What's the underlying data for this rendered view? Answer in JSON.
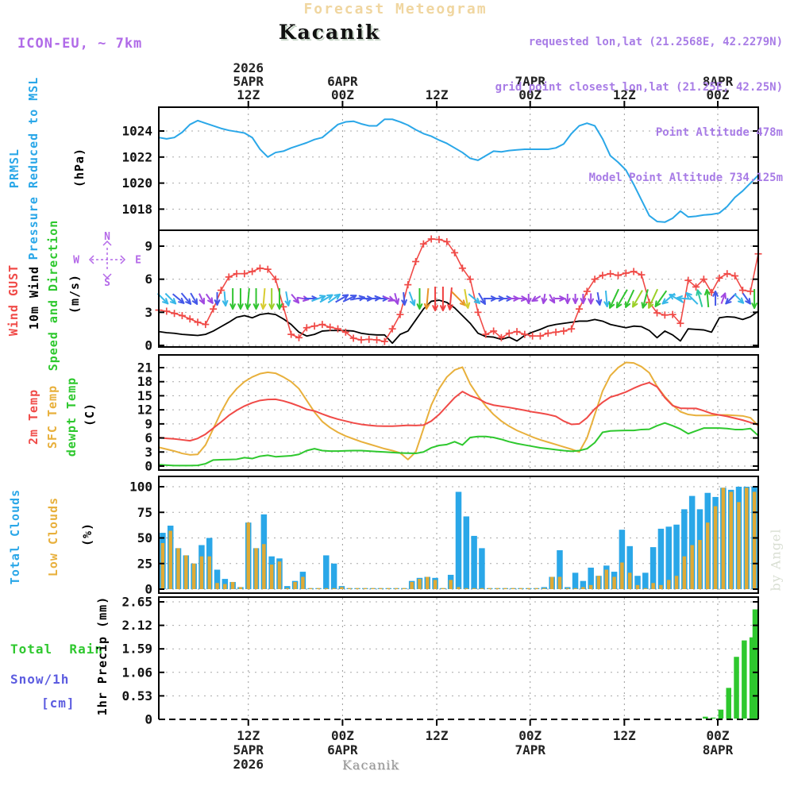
{
  "colors": {
    "title": "#f0d6a0",
    "purple": "#a87ce6",
    "model_purple": "#b06ae8",
    "compass": "#b469e8",
    "blue": "#2aa7e8",
    "red": "#f04a47",
    "green": "#2ec82e",
    "orange": "#e8b03c",
    "black": "#000000",
    "snow_blue": "#5c5ce0",
    "watermark": "#d8ded2"
  },
  "header": {
    "app_title": "Forecast Meteogram",
    "station": "Kacanik",
    "model": "ICON-EU, ~ 7km",
    "requested": "requested lon,lat (21.2568E, 42.2279N)",
    "grid_point": "grid point closest lon,lat (21.25E, 42.25N)",
    "point_altitude": "Point Altitude 478m",
    "model_altitude": "Model Point Altitude 734.125m"
  },
  "footer": {
    "station": "Kacanik",
    "watermark": "by Angel"
  },
  "chart_data": {
    "type": "meteogram-multi-panel",
    "x_hours": 77,
    "grid": {
      "vertical": "dashed",
      "horizontal": "dotted"
    },
    "time_ticks": [
      {
        "h": 11.5,
        "z": "12Z",
        "date": "5APR",
        "year": "2026"
      },
      {
        "h": 23.6,
        "z": "00Z",
        "date": "6APR"
      },
      {
        "h": 35.7,
        "z": "12Z"
      },
      {
        "h": 47.7,
        "z": "00Z",
        "date": "7APR"
      },
      {
        "h": 59.8,
        "z": "12Z"
      },
      {
        "h": 71.8,
        "z": "00Z",
        "date": "8APR"
      }
    ],
    "arrow_colors": {
      "c": "#38b8e8",
      "b": "#4458e8",
      "p": "#a048e0",
      "g": "#30c430",
      "lg": "#9cd028",
      "y": "#d8cc30",
      "o": "#e89428",
      "r": "#f04040",
      "t": "#2cc89c"
    },
    "panels": {
      "pressure": {
        "labels": [
          "PRMSL",
          "Pressure Reduced to MSL"
        ],
        "unit": "(hPa)",
        "yticks": [
          1018,
          1020,
          1022,
          1024
        ],
        "ylim": [
          1016.4,
          1025.9
        ],
        "series_color": "#2aa7e8",
        "prmsl": [
          1023.5,
          1023.4,
          1023.5,
          1023.9,
          1024.5,
          1024.8,
          1024.6,
          1024.4,
          1024.2,
          1024.05,
          1023.95,
          1023.85,
          1023.5,
          1022.6,
          1022.0,
          1022.35,
          1022.45,
          1022.7,
          1022.9,
          1023.1,
          1023.35,
          1023.5,
          1024.0,
          1024.5,
          1024.7,
          1024.75,
          1024.55,
          1024.4,
          1024.4,
          1024.9,
          1024.9,
          1024.7,
          1024.45,
          1024.1,
          1023.8,
          1023.6,
          1023.3,
          1023.05,
          1022.7,
          1022.35,
          1021.9,
          1021.75,
          1022.1,
          1022.45,
          1022.4,
          1022.5,
          1022.55,
          1022.6,
          1022.6,
          1022.6,
          1022.6,
          1022.7,
          1023.0,
          1023.8,
          1024.4,
          1024.6,
          1024.4,
          1023.4,
          1022.1,
          1021.6,
          1021.0,
          1019.9,
          1018.7,
          1017.5,
          1017.05,
          1017.0,
          1017.3,
          1017.85,
          1017.4,
          1017.45,
          1017.55,
          1017.6,
          1017.7,
          1018.2,
          1018.9,
          1019.4,
          1020.0,
          1020.6
        ]
      },
      "wind": {
        "labels": [
          "Wind GUST",
          "10m Wind",
          "Speed and Direction"
        ],
        "unit": "(m/s)",
        "compass": [
          "N",
          "E",
          "S",
          "W"
        ],
        "yticks": [
          0,
          3,
          6,
          9
        ],
        "ylim": [
          -0.15,
          10.45
        ],
        "gust_color": "#f04a47",
        "wind_color": "#000000",
        "gust": [
          3.2,
          3.1,
          2.9,
          2.7,
          2.4,
          2.1,
          1.9,
          3.3,
          5.0,
          6.2,
          6.5,
          6.5,
          6.7,
          7.0,
          6.9,
          6.0,
          3.5,
          1.0,
          0.7,
          1.6,
          1.75,
          1.9,
          1.65,
          1.5,
          1.2,
          0.65,
          0.5,
          0.55,
          0.5,
          0.35,
          1.5,
          2.8,
          5.5,
          7.6,
          9.2,
          9.65,
          9.6,
          9.4,
          8.4,
          7.0,
          6.0,
          3.0,
          1.0,
          1.3,
          0.7,
          1.1,
          1.25,
          1.0,
          0.85,
          0.85,
          1.1,
          1.2,
          1.3,
          1.5,
          3.3,
          4.9,
          6.0,
          6.35,
          6.5,
          6.35,
          6.55,
          6.7,
          6.4,
          3.9,
          2.95,
          2.75,
          2.8,
          2.0,
          5.9,
          5.3,
          6.0,
          4.8,
          6.1,
          6.5,
          6.3,
          5.0,
          4.9,
          8.3
        ],
        "wind10m": [
          1.25,
          1.15,
          1.1,
          1.0,
          0.95,
          0.9,
          1.0,
          1.3,
          1.7,
          2.1,
          2.55,
          2.7,
          2.5,
          2.8,
          2.9,
          2.8,
          2.4,
          1.9,
          1.2,
          0.85,
          1.0,
          1.3,
          1.35,
          1.35,
          1.35,
          1.3,
          1.1,
          1.0,
          0.95,
          0.95,
          0.2,
          1.0,
          1.3,
          2.3,
          3.3,
          4.0,
          4.1,
          3.9,
          3.4,
          2.7,
          2.0,
          1.1,
          0.8,
          0.75,
          0.55,
          0.75,
          0.4,
          0.9,
          1.2,
          1.45,
          1.75,
          1.9,
          2.0,
          2.1,
          2.2,
          2.2,
          2.35,
          2.2,
          1.9,
          1.75,
          1.6,
          1.75,
          1.7,
          1.35,
          0.7,
          1.3,
          0.95,
          0.4,
          1.5,
          1.45,
          1.4,
          1.2,
          2.5,
          2.6,
          2.55,
          2.35,
          2.6,
          3.1
        ],
        "arrows": [
          [
            45,
            "c",
            18
          ],
          [
            45,
            "c",
            18
          ],
          [
            40,
            "b",
            18
          ],
          [
            50,
            "b",
            18
          ],
          [
            60,
            "b",
            16
          ],
          [
            65,
            "p",
            14
          ],
          [
            55,
            "p",
            14
          ],
          [
            90,
            "b",
            16
          ],
          [
            85,
            "c",
            18
          ],
          [
            90,
            "g",
            26
          ],
          [
            90,
            "g",
            26
          ],
          [
            95,
            "g",
            26
          ],
          [
            90,
            "g",
            26
          ],
          [
            95,
            "y",
            26
          ],
          [
            90,
            "lg",
            26
          ],
          [
            90,
            "g",
            26
          ],
          [
            80,
            "c",
            18
          ],
          [
            50,
            "p",
            14
          ],
          [
            10,
            "p",
            14
          ],
          [
            0,
            "b",
            16
          ],
          [
            -20,
            "c",
            18
          ],
          [
            -30,
            "c",
            18
          ],
          [
            -35,
            "c",
            18
          ],
          [
            -30,
            "b",
            18
          ],
          [
            -25,
            "b",
            18
          ],
          [
            -10,
            "b",
            18
          ],
          [
            0,
            "b",
            18
          ],
          [
            -5,
            "b",
            18
          ],
          [
            0,
            "b",
            18
          ],
          [
            20,
            "p",
            14
          ],
          [
            75,
            "p",
            14
          ],
          [
            85,
            "b",
            16
          ],
          [
            70,
            "c",
            18
          ],
          [
            90,
            "g",
            26
          ],
          [
            95,
            "o",
            26
          ],
          [
            90,
            "r",
            30
          ],
          [
            90,
            "r",
            30
          ],
          [
            95,
            "r",
            28
          ],
          [
            45,
            "o",
            24
          ],
          [
            80,
            "y",
            24
          ],
          [
            40,
            "c",
            18
          ],
          [
            60,
            "b",
            16
          ],
          [
            0,
            "b",
            16
          ],
          [
            0,
            "b",
            16
          ],
          [
            0,
            "b",
            16
          ],
          [
            0,
            "p",
            14
          ],
          [
            5,
            "p",
            14
          ],
          [
            90,
            "p",
            12
          ],
          [
            150,
            "p",
            12
          ],
          [
            100,
            "p",
            12
          ],
          [
            60,
            "p",
            12
          ],
          [
            0,
            "p",
            12
          ],
          [
            90,
            "p",
            12
          ],
          [
            90,
            "p",
            12
          ],
          [
            90,
            "p",
            12
          ],
          [
            90,
            "p",
            13
          ],
          [
            80,
            "b",
            16
          ],
          [
            85,
            "c",
            20
          ],
          [
            115,
            "g",
            26
          ],
          [
            120,
            "g",
            26
          ],
          [
            115,
            "g",
            24
          ],
          [
            120,
            "lg",
            24
          ],
          [
            105,
            "g",
            24
          ],
          [
            115,
            "lg",
            26
          ],
          [
            125,
            "g",
            24
          ],
          [
            140,
            "c",
            20
          ],
          [
            210,
            "c",
            20
          ],
          [
            185,
            "c",
            18
          ],
          [
            225,
            "c",
            20
          ],
          [
            255,
            "t",
            22
          ],
          [
            265,
            "g",
            22
          ],
          [
            270,
            "b",
            18
          ],
          [
            290,
            "p",
            14
          ],
          [
            135,
            "b",
            18
          ],
          [
            45,
            "c",
            16
          ],
          [
            55,
            "b",
            16
          ],
          [
            90,
            "g",
            24
          ],
          [
            100,
            "y",
            22
          ]
        ]
      },
      "temp": {
        "labels": [
          "2m Temp",
          "SFC Temp",
          "dewpt Temp"
        ],
        "unit": "(C)",
        "yticks": [
          0,
          3,
          6,
          9,
          12,
          15,
          18,
          21
        ],
        "ylim": [
          -0.85,
          23.7
        ],
        "t2m_color": "#f04a47",
        "sfc_color": "#e8b03c",
        "dewpt_color": "#2ec82e",
        "t2m": [
          6.1,
          5.9,
          5.8,
          5.6,
          5.4,
          5.9,
          6.8,
          8.1,
          9.4,
          10.8,
          11.9,
          12.8,
          13.5,
          14.0,
          14.2,
          14.25,
          13.9,
          13.4,
          12.8,
          12.1,
          11.75,
          11.1,
          10.5,
          10.0,
          9.6,
          9.2,
          8.9,
          8.7,
          8.55,
          8.5,
          8.5,
          8.6,
          8.7,
          8.65,
          8.75,
          9.6,
          11.0,
          12.8,
          14.6,
          15.9,
          15.0,
          14.4,
          13.5,
          13.0,
          12.75,
          12.5,
          12.2,
          11.9,
          11.55,
          11.3,
          11.0,
          10.6,
          9.6,
          8.9,
          9.0,
          10.3,
          12.2,
          13.6,
          14.7,
          15.2,
          15.8,
          16.6,
          17.3,
          17.8,
          16.9,
          14.6,
          12.9,
          12.35,
          12.3,
          12.3,
          11.8,
          11.2,
          10.9,
          10.6,
          10.2,
          9.8,
          9.3,
          8.8
        ],
        "sfc": [
          4.0,
          3.6,
          3.2,
          2.7,
          2.4,
          2.5,
          4.5,
          8.0,
          11.5,
          14.5,
          16.5,
          18.0,
          19.0,
          19.7,
          20.0,
          19.8,
          19.0,
          18.0,
          16.5,
          14.0,
          11.5,
          9.5,
          8.2,
          7.2,
          6.4,
          5.8,
          5.2,
          4.7,
          4.2,
          3.7,
          3.3,
          2.8,
          1.4,
          3.0,
          8.0,
          13.0,
          16.5,
          19.0,
          20.5,
          21.1,
          17.5,
          15.0,
          12.8,
          11.0,
          9.6,
          8.5,
          7.6,
          6.9,
          6.2,
          5.6,
          5.1,
          4.6,
          4.1,
          3.6,
          3.0,
          6.0,
          11.0,
          16.0,
          19.3,
          21.0,
          22.1,
          22.0,
          21.2,
          19.9,
          17.0,
          14.8,
          13.0,
          11.6,
          11.0,
          10.8,
          10.8,
          10.8,
          10.9,
          10.9,
          10.8,
          10.7,
          10.3,
          8.6
        ],
        "dewpt": [
          0.3,
          0.2,
          0.1,
          0.1,
          0.1,
          0.15,
          0.5,
          1.3,
          1.35,
          1.4,
          1.45,
          1.8,
          1.6,
          2.1,
          2.3,
          2.0,
          2.1,
          2.2,
          2.5,
          3.3,
          3.7,
          3.3,
          3.2,
          3.2,
          3.25,
          3.3,
          3.3,
          3.2,
          3.1,
          3.0,
          2.9,
          2.8,
          2.75,
          2.7,
          3.0,
          3.9,
          4.4,
          4.6,
          5.2,
          4.5,
          6.1,
          6.3,
          6.3,
          6.1,
          5.7,
          5.2,
          4.8,
          4.5,
          4.2,
          3.9,
          3.7,
          3.5,
          3.3,
          3.15,
          3.3,
          3.7,
          5.0,
          7.2,
          7.5,
          7.55,
          7.6,
          7.6,
          7.8,
          7.85,
          8.6,
          9.2,
          8.6,
          7.9,
          6.9,
          7.5,
          8.1,
          8.1,
          8.1,
          8.0,
          7.8,
          7.8,
          8.0,
          6.5
        ]
      },
      "clouds": {
        "labels": [
          "Total Clouds",
          "Low Clouds"
        ],
        "unit": "(%)",
        "yticks": [
          0,
          25,
          50,
          75,
          100
        ],
        "ylim": [
          -4,
          110
        ],
        "total_color": "#2aa7e8",
        "low_color": "#e0aa35",
        "total": [
          55,
          62,
          40,
          33,
          25,
          43,
          50,
          19,
          10,
          7,
          2,
          65,
          40,
          73,
          32,
          30,
          3,
          8,
          17,
          1,
          1,
          33,
          25,
          3,
          1,
          1,
          1,
          1,
          1,
          1,
          1,
          1,
          8,
          11,
          12,
          11,
          1,
          14,
          95,
          71,
          52,
          40,
          1,
          1,
          1,
          1,
          1,
          1,
          1,
          2,
          12,
          38,
          2,
          16,
          8,
          21,
          13,
          23,
          17,
          58,
          42,
          13,
          16,
          41,
          59,
          61,
          63,
          78,
          91,
          78,
          94,
          90,
          99,
          97,
          100,
          100,
          100
        ],
        "low": [
          45,
          57,
          40,
          33,
          25,
          32,
          32,
          6,
          5,
          7,
          2,
          65,
          40,
          44,
          24,
          27,
          1,
          7,
          12,
          1,
          1,
          1,
          1,
          2,
          1,
          1,
          1,
          1,
          1,
          1,
          1,
          1,
          7,
          10,
          12,
          9,
          1,
          9,
          2,
          1,
          1,
          1,
          1,
          1,
          1,
          1,
          1,
          1,
          1,
          1,
          12,
          12,
          1,
          1,
          2,
          4,
          13,
          19,
          12,
          26,
          16,
          4,
          1,
          6,
          4,
          9,
          13,
          32,
          43,
          48,
          65,
          81,
          99,
          95,
          85,
          99,
          95
        ]
      },
      "precip": {
        "labels": [
          "Total  Rain",
          "Snow/1h",
          "[cm]"
        ],
        "unit": "1hr Precip (mm)",
        "yticks": [
          0,
          0.53,
          1.06,
          1.59,
          2.12,
          2.65
        ],
        "ylim": [
          0,
          2.76
        ],
        "rain_color": "#2ec82e",
        "rain": [
          [
            70,
            0.06
          ],
          [
            71,
            0.04
          ],
          [
            72,
            0.22
          ],
          [
            73,
            0.71
          ],
          [
            74,
            1.41
          ],
          [
            75,
            1.78
          ],
          [
            76,
            1.85
          ],
          [
            77,
            2.48
          ]
        ]
      }
    }
  }
}
